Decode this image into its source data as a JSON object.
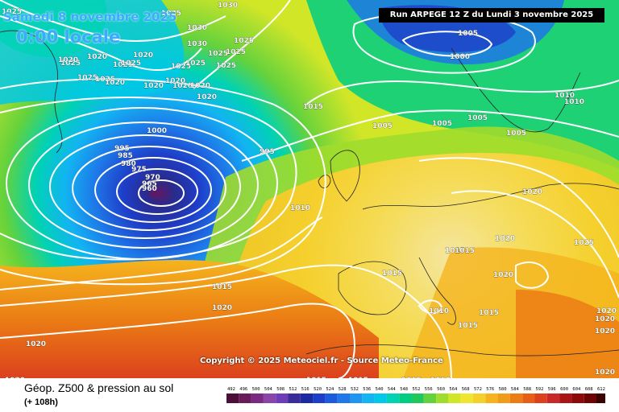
{
  "header": {
    "date_label": "Samedi 8 novembre 2025",
    "time_label": "0:00 locale",
    "run_label": "Run ARPEGE 12 Z du Lundi 3 novembre 2025"
  },
  "copyright": "Copyright © 2025 Meteociel.fr - Source Meteo-France",
  "footer": {
    "title": "Géop. Z500 & pression au sol",
    "subtitle": "(+ 108h)"
  },
  "scale": {
    "labels": [
      "492",
      "496",
      "500",
      "504",
      "508",
      "512",
      "516",
      "520",
      "524",
      "528",
      "532",
      "536",
      "540",
      "544",
      "548",
      "552",
      "556",
      "560",
      "564",
      "568",
      "572",
      "576",
      "580",
      "584",
      "588",
      "592",
      "596",
      "600",
      "604",
      "608",
      "612"
    ],
    "colors": [
      "#4b0f3a",
      "#6a1a5a",
      "#7a2a80",
      "#8a45a8",
      "#6e3cb8",
      "#3a2d9a",
      "#1b2aa0",
      "#1e3ec8",
      "#1e5adc",
      "#1f78e8",
      "#1e96f0",
      "#12b4f2",
      "#00c8e8",
      "#00d2b4",
      "#00cd82",
      "#1ec85a",
      "#64d23c",
      "#a0dc2d",
      "#d2e628",
      "#f0e632",
      "#f5d02d",
      "#f5b41e",
      "#f09b19",
      "#eb7d14",
      "#e65f14",
      "#dc411e",
      "#c82828",
      "#aa1414",
      "#8c0a0a",
      "#6e0505",
      "#3c0000"
    ]
  },
  "isobars": [
    {
      "label": "1025",
      "group": "top"
    },
    {
      "label": "1025",
      "group": "top"
    },
    {
      "label": "1030",
      "group": "top"
    },
    {
      "label": "1030",
      "group": "top"
    },
    {
      "label": "1025",
      "group": "top"
    },
    {
      "label": "1025",
      "group": "top"
    },
    {
      "label": "1025",
      "group": "top"
    },
    {
      "label": "1025",
      "group": "top"
    },
    {
      "label": "1030",
      "group": "top"
    },
    {
      "label": "1020",
      "group": "top"
    },
    {
      "label": "1025",
      "group": "top"
    },
    {
      "label": "1025",
      "group": "top"
    },
    {
      "label": "1020",
      "group": "top"
    },
    {
      "label": "1025",
      "group": "top"
    },
    {
      "label": "1025",
      "group": "top"
    },
    {
      "label": "1025",
      "group": "top"
    },
    {
      "label": "1020",
      "group": "top"
    },
    {
      "label": "1025",
      "group": "top"
    },
    {
      "label": "1020",
      "group": "top"
    },
    {
      "label": "1025",
      "group": "top"
    },
    {
      "label": "1020",
      "group": "top"
    },
    {
      "label": "1020",
      "group": "top"
    },
    {
      "label": "1020",
      "group": "top"
    },
    {
      "label": "1020",
      "group": "top"
    },
    {
      "label": "1020",
      "group": "top"
    },
    {
      "label": "1005",
      "group": "north"
    },
    {
      "label": "1000",
      "group": "north"
    },
    {
      "label": "1015",
      "group": "north"
    },
    {
      "label": "1005",
      "group": "north"
    },
    {
      "label": "1005",
      "group": "north"
    },
    {
      "label": "1005",
      "group": "north"
    },
    {
      "label": "1005",
      "group": "north"
    },
    {
      "label": "1010",
      "group": "north"
    },
    {
      "label": "1010",
      "group": "north"
    },
    {
      "label": "1000",
      "group": "low"
    },
    {
      "label": "995",
      "group": "low"
    },
    {
      "label": "995",
      "group": "low"
    },
    {
      "label": "985",
      "group": "low"
    },
    {
      "label": "980",
      "group": "low"
    },
    {
      "label": "975",
      "group": "low"
    },
    {
      "label": "970",
      "group": "low"
    },
    {
      "label": "965",
      "group": "low"
    },
    {
      "label": "960",
      "group": "low"
    },
    {
      "label": "1010",
      "group": "europe"
    },
    {
      "label": "1020",
      "group": "europe"
    },
    {
      "label": "1015",
      "group": "europe"
    },
    {
      "label": "1020",
      "group": "europe"
    },
    {
      "label": "1015",
      "group": "europe"
    },
    {
      "label": "1025",
      "group": "europe"
    },
    {
      "label": "1020",
      "group": "europe"
    },
    {
      "label": "1010",
      "group": "europe"
    },
    {
      "label": "1015",
      "group": "europe"
    },
    {
      "label": "1015",
      "group": "europe"
    },
    {
      "label": "1015",
      "group": "south"
    },
    {
      "label": "1020",
      "group": "south"
    },
    {
      "label": "1020",
      "group": "south"
    },
    {
      "label": "1020",
      "group": "south"
    },
    {
      "label": "1015",
      "group": "south"
    },
    {
      "label": "1015",
      "group": "south"
    },
    {
      "label": "1015",
      "group": "south"
    },
    {
      "label": "1010",
      "group": "south"
    },
    {
      "label": "1020",
      "group": "south"
    },
    {
      "label": "1020",
      "group": "south"
    },
    {
      "label": "1015",
      "group": "south"
    },
    {
      "label": "1020",
      "group": "south"
    },
    {
      "label": "1020",
      "group": "south"
    }
  ]
}
